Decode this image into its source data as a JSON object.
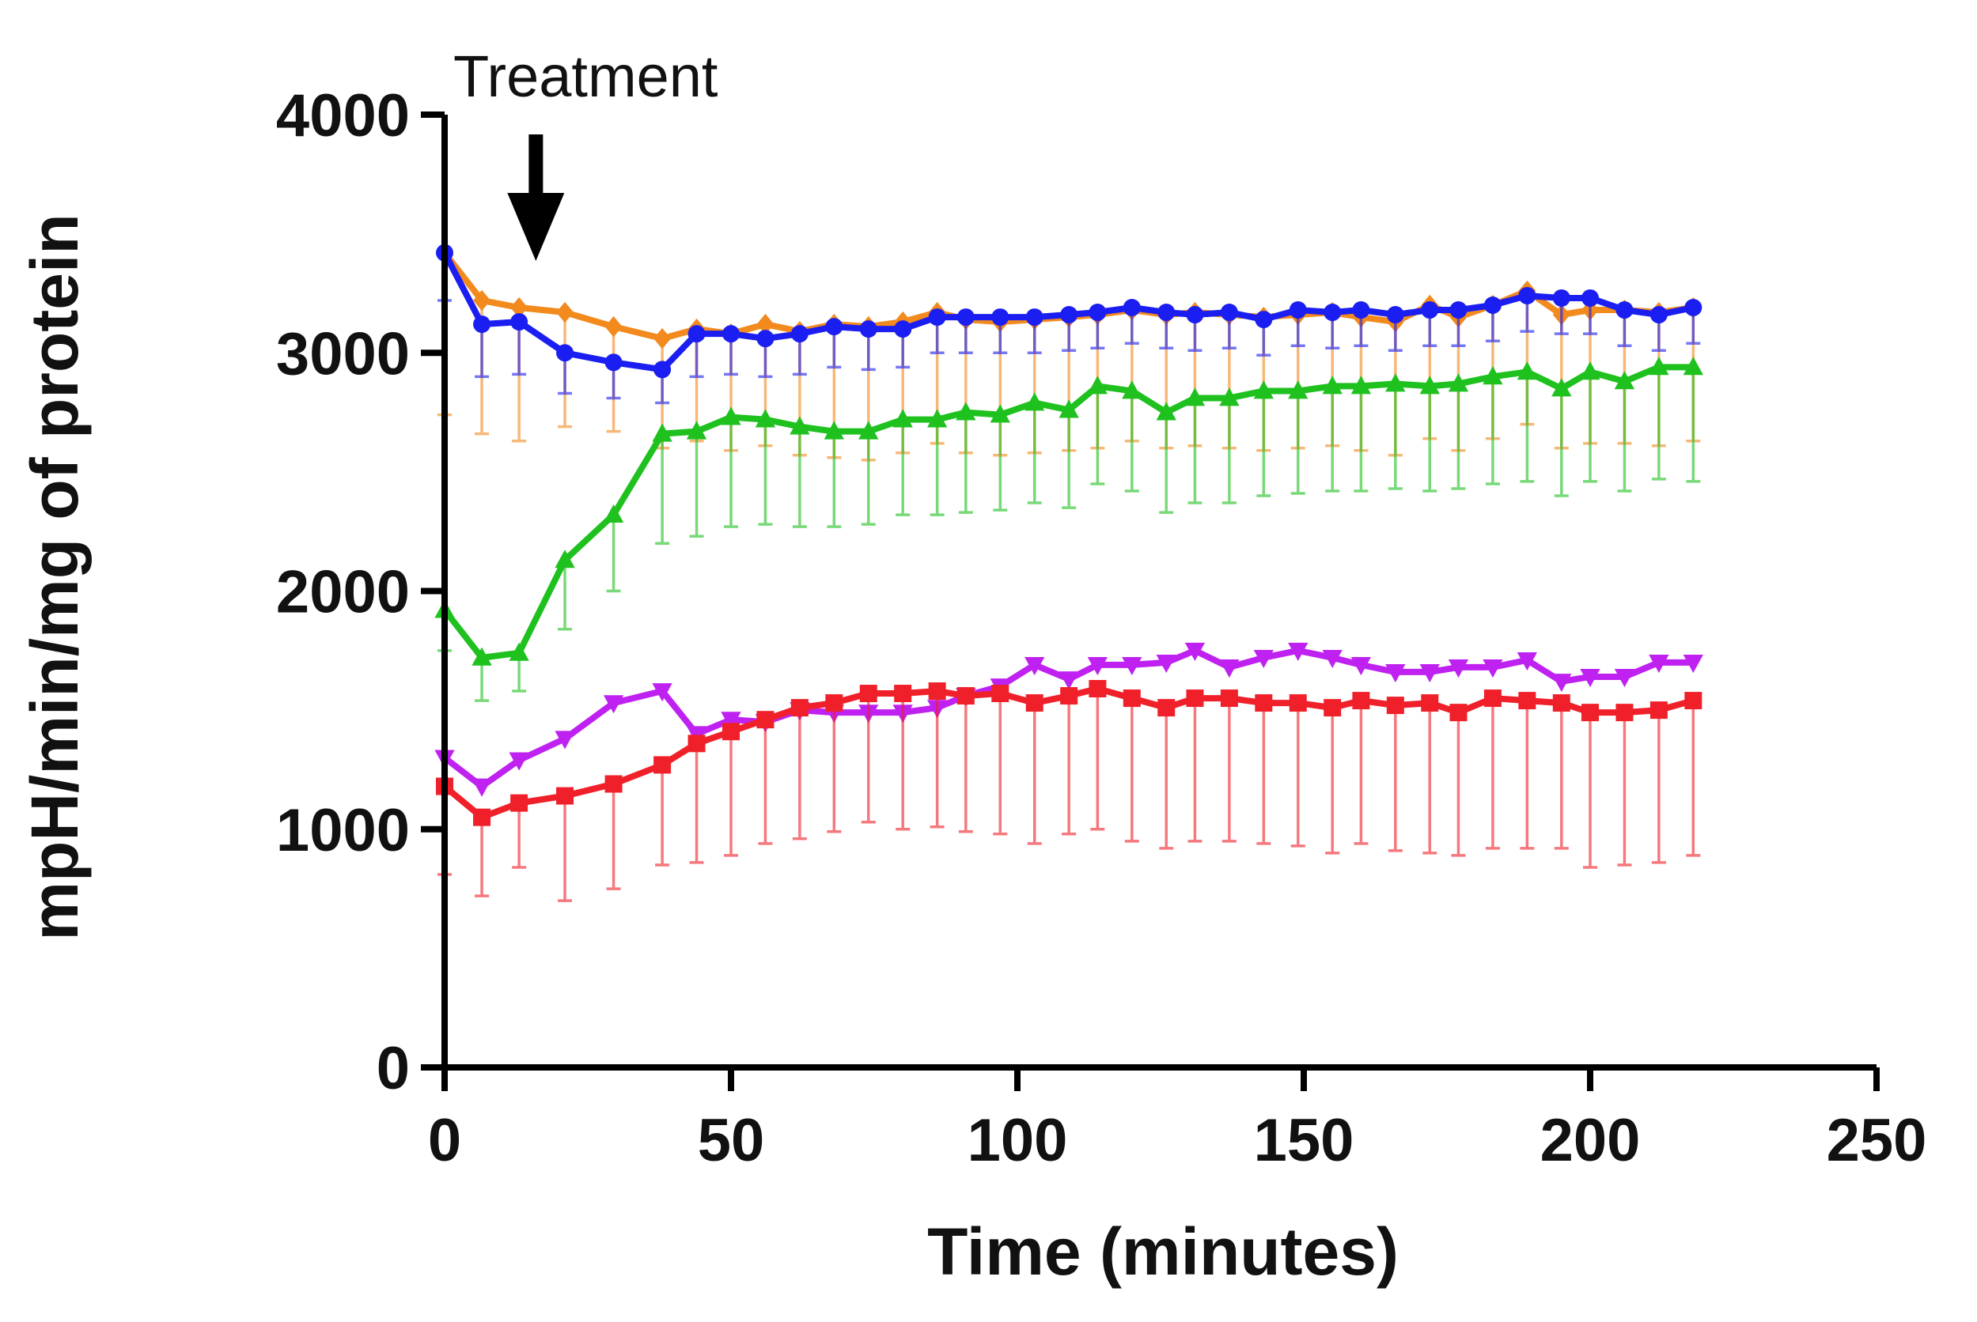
{
  "chart_data": {
    "type": "line",
    "title": "",
    "xlabel": "Time (minutes)",
    "ylabel": "mpH/min/mg of protein",
    "xlim": [
      0,
      250
    ],
    "ylim": [
      0,
      4000
    ],
    "x_ticks": [
      "0",
      "50",
      "100",
      "150",
      "200",
      "250"
    ],
    "y_ticks": [
      "0",
      "1000",
      "2000",
      "3000",
      "4000"
    ],
    "x_tick_values": [
      0,
      50,
      100,
      150,
      200,
      250
    ],
    "y_tick_values": [
      0,
      1000,
      2000,
      3000,
      4000
    ],
    "grid": false,
    "legend": "none",
    "annotation": {
      "text": "Treatment",
      "x": 14,
      "arrow": "down"
    },
    "x": [
      0,
      6.5,
      13,
      21,
      29.5,
      38,
      44,
      50,
      56,
      62,
      68,
      74,
      80,
      86,
      91,
      97,
      103,
      109,
      114,
      120,
      126,
      131,
      137,
      143,
      149,
      155,
      160,
      166,
      172,
      177,
      183,
      189,
      195,
      200,
      206,
      212,
      218
    ],
    "series": [
      {
        "color": "#f28a1e",
        "marker": "diamond",
        "values": [
          3420,
          3220,
          3190,
          3170,
          3110,
          3060,
          3100,
          3080,
          3120,
          3090,
          3120,
          3110,
          3130,
          3170,
          3140,
          3130,
          3140,
          3150,
          3160,
          3180,
          3160,
          3170,
          3160,
          3150,
          3160,
          3170,
          3150,
          3130,
          3200,
          3150,
          3200,
          3260,
          3160,
          3180,
          3180,
          3170,
          3190
        ],
        "error": [
          680,
          560,
          560,
          480,
          440,
          460,
          470,
          490,
          510,
          520,
          560,
          560,
          550,
          550,
          560,
          560,
          560,
          560,
          560,
          550,
          560,
          560,
          560,
          560,
          560,
          560,
          560,
          560,
          560,
          560,
          560,
          560,
          560,
          560,
          560,
          560,
          560
        ]
      },
      {
        "color": "#1b1ef0",
        "marker": "circle",
        "values": [
          3420,
          3120,
          3130,
          3000,
          2960,
          2930,
          3080,
          3080,
          3060,
          3080,
          3110,
          3100,
          3100,
          3150,
          3150,
          3150,
          3150,
          3160,
          3170,
          3190,
          3170,
          3160,
          3170,
          3140,
          3180,
          3170,
          3180,
          3160,
          3180,
          3180,
          3200,
          3240,
          3230,
          3230,
          3180,
          3160,
          3190
        ],
        "error": [
          200,
          220,
          220,
          170,
          150,
          140,
          180,
          170,
          160,
          170,
          170,
          170,
          160,
          150,
          150,
          150,
          150,
          150,
          150,
          150,
          150,
          150,
          150,
          150,
          150,
          150,
          150,
          150,
          150,
          150,
          150,
          150,
          150,
          150,
          150,
          150,
          150
        ]
      },
      {
        "color": "#1fc11f",
        "marker": "triangle-up",
        "values": [
          1920,
          1720,
          1740,
          2130,
          2320,
          2660,
          2670,
          2730,
          2720,
          2690,
          2670,
          2670,
          2720,
          2720,
          2750,
          2740,
          2790,
          2760,
          2860,
          2840,
          2750,
          2810,
          2810,
          2840,
          2840,
          2860,
          2860,
          2870,
          2860,
          2870,
          2900,
          2920,
          2850,
          2920,
          2880,
          2940,
          2940
        ],
        "error": [
          170,
          180,
          160,
          290,
          320,
          460,
          440,
          460,
          440,
          420,
          400,
          390,
          400,
          400,
          420,
          400,
          420,
          410,
          410,
          420,
          420,
          440,
          440,
          440,
          430,
          440,
          440,
          440,
          440,
          440,
          450,
          460,
          450,
          460,
          460,
          470,
          480
        ]
      },
      {
        "color": "#bf22f0",
        "marker": "triangle-down",
        "values": [
          1300,
          1180,
          1290,
          1380,
          1530,
          1580,
          1400,
          1460,
          1450,
          1500,
          1490,
          1490,
          1490,
          1510,
          1560,
          1600,
          1690,
          1630,
          1690,
          1690,
          1700,
          1750,
          1680,
          1720,
          1750,
          1720,
          1690,
          1660,
          1660,
          1680,
          1680,
          1710,
          1620,
          1640,
          1640,
          1700,
          1700
        ],
        "error": [
          0,
          0,
          0,
          0,
          0,
          0,
          0,
          0,
          0,
          0,
          0,
          0,
          0,
          0,
          0,
          0,
          0,
          0,
          0,
          0,
          0,
          0,
          0,
          0,
          0,
          0,
          0,
          0,
          0,
          0,
          0,
          0,
          0,
          0,
          0,
          0,
          0
        ]
      },
      {
        "color": "#f0202a",
        "marker": "square",
        "values": [
          1180,
          1050,
          1110,
          1140,
          1190,
          1270,
          1360,
          1410,
          1460,
          1510,
          1530,
          1570,
          1570,
          1580,
          1560,
          1570,
          1530,
          1560,
          1590,
          1550,
          1510,
          1550,
          1550,
          1530,
          1530,
          1510,
          1540,
          1520,
          1530,
          1490,
          1550,
          1540,
          1530,
          1490,
          1490,
          1500,
          1540
        ],
        "error": [
          370,
          330,
          270,
          440,
          440,
          420,
          500,
          520,
          520,
          550,
          540,
          540,
          570,
          570,
          570,
          590,
          590,
          580,
          590,
          600,
          590,
          600,
          600,
          590,
          600,
          610,
          600,
          610,
          630,
          600,
          630,
          620,
          610,
          650,
          640,
          640,
          650
        ]
      }
    ]
  }
}
